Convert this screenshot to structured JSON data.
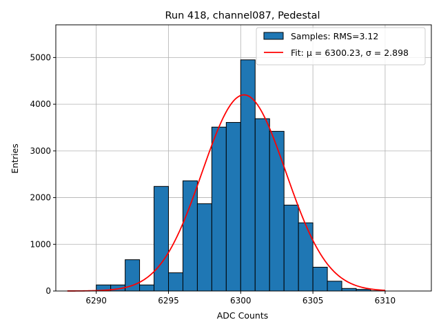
{
  "colors": {
    "bar_fill": "#1f77b4",
    "bar_edge": "#000000",
    "fit_line": "#ff0000",
    "grid": "#b0b0b0"
  },
  "chart_data": {
    "type": "bar",
    "title": "Run 418, channel087, Pedestal",
    "xlabel": "ADC Counts",
    "ylabel": "Entries",
    "xlim": [
      6287.2,
      6313.2
    ],
    "ylim": [
      0,
      5700
    ],
    "x_ticks": [
      6290,
      6295,
      6300,
      6305,
      6310
    ],
    "y_ticks": [
      0,
      1000,
      2000,
      3000,
      4000,
      5000
    ],
    "grid": true,
    "legend_position": "top-right",
    "histogram": {
      "name": "Samples: RMS=3.12",
      "bin_width": 1,
      "bin_lefts": [
        6290,
        6291,
        6292,
        6293,
        6294,
        6295,
        6296,
        6297,
        6298,
        6299,
        6300,
        6301,
        6302,
        6303,
        6304,
        6305,
        6306,
        6307,
        6308,
        6309
      ],
      "values": [
        130,
        130,
        670,
        130,
        2240,
        390,
        2360,
        1870,
        3510,
        3610,
        4950,
        3690,
        3420,
        1840,
        1460,
        510,
        210,
        55,
        35,
        5
      ]
    },
    "fit": {
      "name": "Fit: μ = 6300.23, σ = 2.898",
      "mu": 6300.23,
      "sigma": 2.898,
      "amplitude": 4200,
      "x_range": [
        6288,
        6310
      ]
    }
  }
}
